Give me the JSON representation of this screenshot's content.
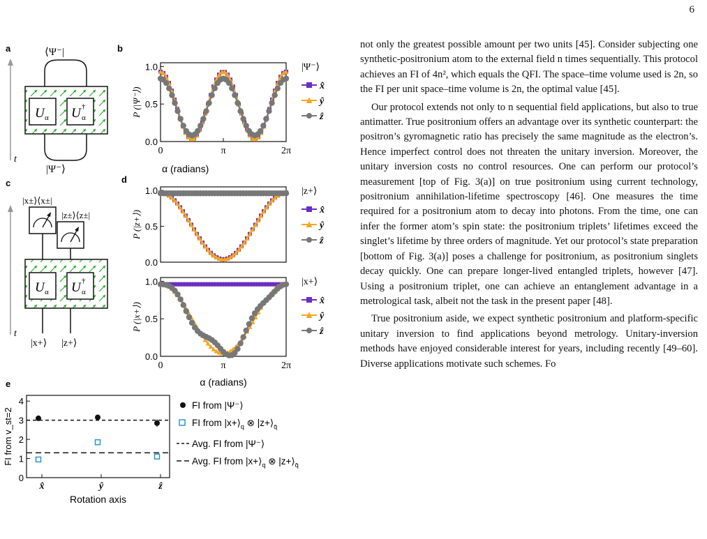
{
  "page_number": "6",
  "panel_letters": {
    "a": "a",
    "b": "b",
    "c": "c",
    "d": "d",
    "e": "e"
  },
  "circuit_a": {
    "top_label": "⟨Ψ⁻|",
    "bottom_label": "|Ψ⁻⟩",
    "gate1": "U",
    "gate1_sub": "α",
    "gate2": "U",
    "gate2_sup": "†",
    "gate2_sub": "α",
    "time_label": "t"
  },
  "circuit_c": {
    "meas1_label": "|x±⟩⟨x±|",
    "meas2_label": "|z±⟩⟨z±|",
    "gate1": "U",
    "gate1_sub": "α",
    "gate2": "U",
    "gate2_sup": "†",
    "gate2_sub": "α",
    "in1": "|x+⟩",
    "in2": "|z+⟩",
    "time_label": "t"
  },
  "chart_data": [
    {
      "type": "line",
      "panel": "b",
      "title": "|Ψ⁻⟩",
      "ylabel": "P (|Ψ⁻⟩)",
      "xlabel": "",
      "xticks": [
        "0",
        "π",
        "2π"
      ],
      "yticks": [
        "0.0",
        "0.5",
        "1.0"
      ],
      "xlim": [
        0,
        6.283
      ],
      "ylim": [
        0,
        1.05
      ],
      "legend": "right",
      "series": [
        {
          "name": "x̂",
          "color": "#6a2fc0",
          "marker": "square",
          "model": "cos2"
        },
        {
          "name": "ŷ",
          "color": "#f5a623",
          "marker": "triangle",
          "model": "cos2"
        },
        {
          "name": "ẑ",
          "color": "#777777",
          "marker": "circle",
          "model": "zpsi"
        }
      ]
    },
    {
      "type": "line",
      "panel": "d-top",
      "title": "|z+⟩",
      "ylabel": "P (|z+⟩)",
      "xlabel": "",
      "xticks": [
        "0",
        "π",
        "2π"
      ],
      "yticks": [
        "0.0",
        "0.5",
        "1.0"
      ],
      "xlim": [
        0,
        6.283
      ],
      "ylim": [
        0,
        1.05
      ],
      "legend": "right",
      "series": [
        {
          "name": "x̂",
          "color": "#6a2fc0",
          "marker": "square",
          "model": "cos2half"
        },
        {
          "name": "ŷ",
          "color": "#f5a623",
          "marker": "triangle",
          "model": "cos2half"
        },
        {
          "name": "ẑ",
          "color": "#777777",
          "marker": "circle",
          "model": "one"
        }
      ]
    },
    {
      "type": "line",
      "panel": "d-bottom",
      "title": "|x+⟩",
      "ylabel": "P (|x+⟩)",
      "xlabel": "α (radians)",
      "xticks": [
        "0",
        "π",
        "2π"
      ],
      "yticks": [
        "0.0",
        "0.5",
        "1.0"
      ],
      "xlim": [
        0,
        6.283
      ],
      "ylim": [
        0,
        1.05
      ],
      "legend": "right",
      "series": [
        {
          "name": "x̂",
          "color": "#6a2fc0",
          "marker": "square",
          "model": "one"
        },
        {
          "name": "ŷ",
          "color": "#f5a623",
          "marker": "triangle",
          "model": "cos2half"
        },
        {
          "name": "ẑ",
          "color": "#777777",
          "marker": "circle",
          "model": "zx"
        }
      ]
    },
    {
      "type": "scatter",
      "panel": "e",
      "ylabel": "FI from v_st=2",
      "xlabel": "Rotation axis",
      "categories": [
        "x̂",
        "ŷ",
        "ẑ"
      ],
      "yticks": [
        "0",
        "1",
        "2",
        "3",
        "4"
      ],
      "ylim": [
        0,
        4.3
      ],
      "series": [
        {
          "name": "FI from |Ψ⁻⟩",
          "color": "#111111",
          "marker": "circle",
          "values": [
            3.1,
            3.15,
            2.85
          ],
          "errors": [
            0.05,
            0.05,
            0.2
          ]
        },
        {
          "name": "FI from |x+⟩q ⊗ |z+⟩q̄",
          "color": "#1f8fd0",
          "marker": "open-square",
          "values": [
            0.95,
            1.85,
            1.1
          ],
          "errors": [
            0.08,
            0.08,
            0.1
          ]
        }
      ],
      "reference_lines": [
        {
          "name": "Avg. FI from |Ψ⁻⟩",
          "value": 3.0,
          "style": "dashed"
        },
        {
          "name": "Avg. FI from |x+⟩q ⊗ |z+⟩q̄",
          "value": 1.3,
          "style": "dashed"
        }
      ]
    }
  ],
  "axis_b_xlabel": "α (radians)",
  "legend_e": {
    "item1": "FI from |Ψ⁻⟩",
    "item2_pre": "FI from |x+⟩",
    "item2_sub1": "q",
    "item2_mid": " ⊗ |z+⟩",
    "item2_sub2": "q̄",
    "item3": "Avg. FI from |Ψ⁻⟩",
    "item4_pre": "Avg. FI from |x+⟩",
    "item4_sub1": "q",
    "item4_mid": " ⊗ |z+⟩",
    "item4_sub2": "q̄"
  },
  "text": {
    "p1": "not only the greatest possible amount per two units [45]. Consider subjecting one synthetic-positronium atom to the external field n times sequentially. This protocol achieves an FI of 4n², which equals the QFI. The space–time volume used is 2n, so the FI per unit space–time volume is 2n, the optimal value [45].",
    "p2": "Our protocol extends not only to n sequential field applications, but also to true antimatter. True positronium offers an advantage over its synthetic counterpart: the positron’s gyromagnetic ratio has precisely the same magnitude as the electron’s. Hence imperfect control does not threaten the unitary inversion. Moreover, the unitary inversion costs no control resources. One can perform our protocol’s measurement [top of Fig. 3(a)] on true positronium using current technology, positronium annihilation-lifetime spectroscopy [46]. One measures the time required for a positronium atom to decay into photons. From the time, one can infer the former atom’s spin state: the positronium triplets’ lifetimes exceed the singlet’s lifetime by three orders of magnitude. Yet our protocol’s state preparation [bottom of Fig. 3(a)] poses a challenge for positronium, as positronium singlets decay quickly. One can prepare longer-lived entangled triplets, however [47]. Using a positronium triplet, one can achieve an entanglement advantage in a metrological task, albeit not the task in the present paper [48].",
    "p3": "True positronium aside, we expect synthetic positronium and platform-specific unitary inversion to find applications beyond metrology. Unitary-inversion methods have enjoyed considerable interest for years, including recently [49–60]. Diverse applications motivate such schemes. Fo"
  }
}
